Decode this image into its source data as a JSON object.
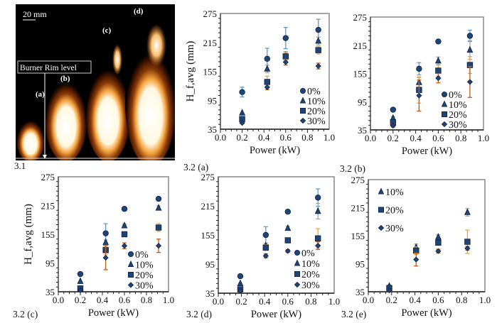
{
  "figure_labels": {
    "panel_31": "3.1",
    "scale_bar": "20 mm",
    "burner_rim": "Burner Rim level",
    "flames": [
      "(a)",
      "(b)",
      "(c)",
      "(d)"
    ]
  },
  "colors": {
    "marker": "#1f4478",
    "err_0": "#5b9bd5",
    "err_10": "#a5a5a5",
    "err_20": "#f2a33a",
    "err_30": "#c55a11"
  },
  "chart_data": [
    {
      "type": "scatter",
      "panel": "3.2 (a)",
      "xlabel": "Power (kW)",
      "ylabel": "H_f,avg (mm)",
      "xlim": [
        0,
        1
      ],
      "ylim": [
        35,
        275
      ],
      "xticks": [
        "0.0",
        "0.2",
        "0.4",
        "0.6",
        "0.8",
        "1.0"
      ],
      "yticks": [
        "35",
        "95",
        "155",
        "215",
        "275"
      ],
      "series": [
        {
          "name": "0%",
          "marker": "circle",
          "x": [
            0.2,
            0.43,
            0.6,
            0.9
          ],
          "y": [
            112,
            181,
            224,
            241
          ],
          "err": [
            10,
            22,
            22,
            22
          ]
        },
        {
          "name": "10%",
          "marker": "triangle",
          "x": [
            0.2,
            0.43,
            0.6,
            0.9
          ],
          "y": [
            69,
            160,
            188,
            218
          ],
          "err": [
            0,
            8,
            8,
            8
          ]
        },
        {
          "name": "20%",
          "marker": "square",
          "x": [
            0.2,
            0.43,
            0.6,
            0.9
          ],
          "y": [
            56,
            133,
            186,
            199
          ],
          "err": [
            3,
            12,
            8,
            8
          ]
        },
        {
          "name": "30%",
          "marker": "diamond",
          "x": [
            0.2,
            0.43,
            0.6,
            0.9
          ],
          "y": [
            48,
            122,
            174,
            166
          ],
          "err": [
            2,
            5,
            6,
            6
          ]
        }
      ]
    },
    {
      "type": "scatter",
      "panel": "3.2 (b)",
      "xlabel": "Power (kW)",
      "ylabel": "",
      "xlim": [
        0,
        1
      ],
      "ylim": [
        35,
        275
      ],
      "xticks": [
        "0.0",
        "0.2",
        "0.4",
        "0.6",
        "0.8",
        "1.0"
      ],
      "yticks": [
        "35",
        "95",
        "155",
        "215",
        "275"
      ],
      "series": [
        {
          "name": "0%",
          "marker": "circle",
          "x": [
            0.2,
            0.43,
            0.6,
            0.88
          ],
          "y": [
            78,
            165,
            223,
            235
          ],
          "err": [
            0,
            13,
            0,
            12
          ]
        },
        {
          "name": "10%",
          "marker": "triangle",
          "x": [
            0.2,
            0.43,
            0.6,
            0.88
          ],
          "y": [
            60,
            136,
            182,
            205
          ],
          "err": [
            3,
            10,
            8,
            20
          ]
        },
        {
          "name": "20%",
          "marker": "square",
          "x": [
            0.2,
            0.43,
            0.6,
            0.88
          ],
          "y": [
            51,
            120,
            161,
            173
          ],
          "err": [
            4,
            28,
            12,
            18
          ]
        },
        {
          "name": "30%",
          "marker": "diamond",
          "x": [
            0.2,
            0.43,
            0.6,
            0.88
          ],
          "y": [
            44,
            108,
            145,
            137
          ],
          "err": [
            3,
            33,
            10,
            33
          ]
        }
      ]
    },
    {
      "type": "scatter",
      "panel": "3.2 (c)",
      "xlabel": "Power (kW)",
      "ylabel": "H_f,avg (mm)",
      "xlim": [
        0,
        1
      ],
      "ylim": [
        35,
        275
      ],
      "xticks": [
        "0.0",
        "0.2",
        "0.4",
        "0.6",
        "0.8",
        "1.0"
      ],
      "yticks": [
        "35",
        "95",
        "155",
        "215",
        "275"
      ],
      "series": [
        {
          "name": "0%",
          "marker": "circle",
          "x": [
            0.2,
            0.43,
            0.6,
            0.91
          ],
          "y": [
            72,
            157,
            208,
            229
          ],
          "err": [
            0,
            20,
            3,
            0
          ]
        },
        {
          "name": "10%",
          "marker": "triangle",
          "x": [
            0.2,
            0.43,
            0.6,
            0.91
          ],
          "y": [
            57,
            138,
            173,
            210
          ],
          "err": [
            0,
            5,
            3,
            4
          ]
        },
        {
          "name": "20%",
          "marker": "square",
          "x": [
            0.2,
            0.43,
            0.6,
            0.91
          ],
          "y": [
            42,
            122,
            155,
            169
          ],
          "err": [
            0,
            10,
            4,
            8
          ]
        },
        {
          "name": "30%",
          "marker": "diamond",
          "x": [
            0.2,
            0.43,
            0.6,
            0.91
          ],
          "y": [
            38,
            106,
            131,
            131
          ],
          "err": [
            0,
            25,
            6,
            14
          ]
        }
      ]
    },
    {
      "type": "scatter",
      "panel": "3.2 (d)",
      "xlabel": "Power (kW)",
      "ylabel": "",
      "xlim": [
        0,
        1
      ],
      "ylim": [
        35,
        275
      ],
      "xticks": [
        "0.0",
        "0.2",
        "0.4",
        "0.6",
        "0.8",
        "1.0"
      ],
      "yticks": [
        "35",
        "95",
        "155",
        "215",
        "275"
      ],
      "series": [
        {
          "name": "0%",
          "marker": "circle",
          "x": [
            0.19,
            0.41,
            0.6,
            0.86
          ],
          "y": [
            70,
            155,
            203,
            232
          ],
          "err": [
            0,
            17,
            4,
            18
          ]
        },
        {
          "name": "10%",
          "marker": "triangle",
          "x": [
            0.19,
            0.41,
            0.6,
            0.86
          ],
          "y": [
            55,
            133,
            169,
            204
          ],
          "err": [
            0,
            5,
            4,
            16
          ]
        },
        {
          "name": "20%",
          "marker": "square",
          "x": [
            0.19,
            0.41,
            0.6,
            0.86
          ],
          "y": [
            43,
            129,
            144,
            148
          ],
          "err": [
            0,
            6,
            0,
            20
          ]
        },
        {
          "name": "30%",
          "marker": "diamond",
          "x": [
            0.19,
            0.41,
            0.6,
            0.86
          ],
          "y": [
            40,
            112,
            122,
            133
          ],
          "err": [
            0,
            4,
            3,
            8
          ]
        }
      ]
    },
    {
      "type": "scatter",
      "panel": "3.2 (e)",
      "xlabel": "Power (kW)",
      "ylabel": "",
      "xlim": [
        0,
        1
      ],
      "ylim": [
        35,
        275
      ],
      "xticks": [
        "0.0",
        "0.2",
        "0.4",
        "0.6",
        "0.8",
        "1.0"
      ],
      "yticks": [
        "35",
        "95",
        "155",
        "215",
        "275"
      ],
      "series": [
        {
          "name": "10%",
          "marker": "triangle",
          "x": [
            0.18,
            0.41,
            0.6,
            0.85
          ],
          "y": [
            47,
            130,
            152,
            205
          ],
          "err": [
            2,
            7,
            5,
            8
          ]
        },
        {
          "name": "20%",
          "marker": "square",
          "x": [
            0.18,
            0.41,
            0.6,
            0.85
          ],
          "y": [
            43,
            123,
            140,
            142
          ],
          "err": [
            2,
            8,
            3,
            25
          ]
        },
        {
          "name": "30%",
          "marker": "diamond",
          "x": [
            0.18,
            0.41,
            0.6,
            0.85
          ],
          "y": [
            38,
            104,
            122,
            128
          ],
          "err": [
            2,
            14,
            4,
            4
          ]
        }
      ]
    }
  ]
}
